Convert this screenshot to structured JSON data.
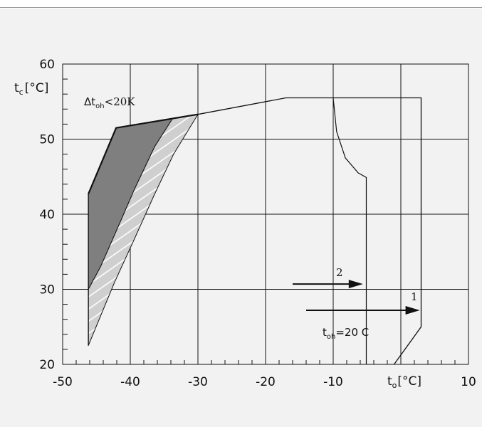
{
  "chart_data": {
    "type": "line",
    "xlim": [
      -50,
      10
    ],
    "ylim": [
      20,
      60
    ],
    "x_ticks": [
      "-50",
      "-40",
      "-30",
      "-20",
      "-10",
      "",
      "10"
    ],
    "y_ticks": [
      "20",
      "30",
      "40",
      "50",
      "60"
    ],
    "x_ticks_values": [
      -50,
      -40,
      -30,
      -20,
      -10,
      0,
      10
    ],
    "y_ticks_values": [
      20,
      30,
      40,
      50,
      60
    ],
    "xlabel": {
      "base": "t",
      "sub": "o",
      "unit": "[°C]"
    },
    "ylabel": {
      "base": "t",
      "sub": "c",
      "unit": "[°C]"
    },
    "grid": true,
    "envelope": [
      [
        -46.2,
        22.5
      ],
      [
        -46.2,
        42.7
      ],
      [
        -42.1,
        51.5
      ],
      [
        -30.0,
        53.3
      ],
      [
        -17.0,
        55.5
      ],
      [
        3.0,
        55.5
      ],
      [
        3.0,
        25.0
      ],
      [
        -1.0,
        20.0
      ]
    ],
    "inner_curve": [
      [
        -10.0,
        55.5
      ],
      [
        -9.5,
        51.0
      ],
      [
        -8.2,
        47.5
      ],
      [
        -6.3,
        45.5
      ],
      [
        -5.1,
        44.9
      ],
      [
        -5.1,
        20.0
      ]
    ],
    "dark_region": [
      [
        -46.2,
        42.7
      ],
      [
        -42.1,
        51.5
      ],
      [
        -33.7,
        52.8
      ],
      [
        -36.4,
        49.0
      ],
      [
        -39.3,
        43.5
      ],
      [
        -42.2,
        37.5
      ],
      [
        -44.4,
        33.0
      ],
      [
        -46.2,
        30.0
      ]
    ],
    "hatched_band": [
      [
        -46.2,
        30.0
      ],
      [
        -44.4,
        33.0
      ],
      [
        -42.2,
        37.5
      ],
      [
        -39.3,
        43.5
      ],
      [
        -36.4,
        49.0
      ],
      [
        -33.7,
        52.8
      ],
      [
        -30.0,
        53.3
      ],
      [
        -33.6,
        48.0
      ],
      [
        -36.5,
        42.5
      ],
      [
        -39.5,
        36.5
      ],
      [
        -42.3,
        31.0
      ],
      [
        -44.6,
        26.0
      ],
      [
        -46.2,
        22.5
      ]
    ],
    "annotations": {
      "delta": {
        "prefix": "Δt",
        "sub": "oh",
        "suffix": "<20K"
      },
      "toh": {
        "base": "t",
        "sub": "oh",
        "suffix": "=20 C"
      },
      "arrow1_label": "1",
      "arrow2_label": "2"
    },
    "arrows": [
      {
        "label": "1",
        "from": [
          -14.0,
          27.2
        ],
        "to": [
          2.8,
          27.2
        ]
      },
      {
        "label": "2",
        "from": [
          -16.0,
          30.7
        ],
        "to": [
          -5.6,
          30.7
        ]
      }
    ]
  },
  "colors": {
    "background": "#f2f2f2",
    "line": "#111111",
    "dark_fill": "#7f7f7f",
    "band_fill": "#cfcfcf",
    "hatch": "#ffffff"
  }
}
